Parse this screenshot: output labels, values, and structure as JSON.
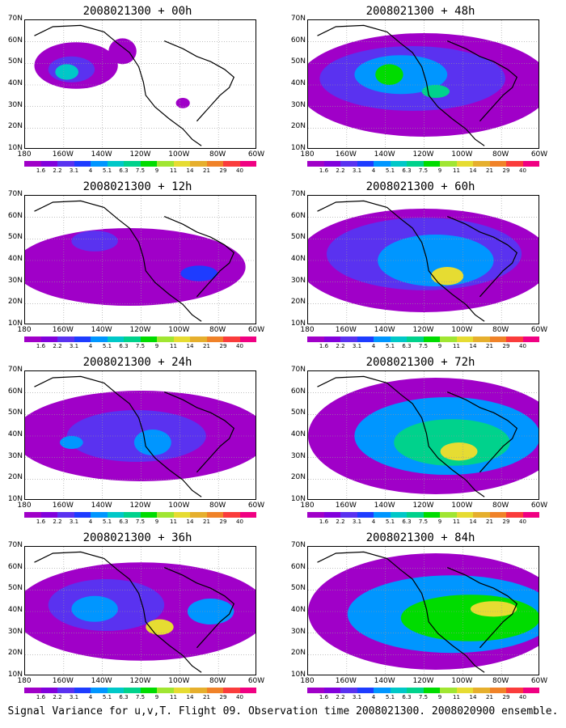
{
  "caption": "Signal Variance for u,v,T. Flight 09. Observation time 2008021300. 2008020900 ensemble.",
  "lat_labels": [
    "70N",
    "60N",
    "50N",
    "40N",
    "30N",
    "20N",
    "10N"
  ],
  "lon_labels": [
    "180",
    "160W",
    "140W",
    "120W",
    "100W",
    "80W",
    "60W"
  ],
  "colorbar": {
    "colors": [
      "#a000c8",
      "#8200dc",
      "#5a32f0",
      "#1e3cff",
      "#0096ff",
      "#00c8c8",
      "#00d28c",
      "#00dc00",
      "#a0e632",
      "#e6dc32",
      "#e6af2d",
      "#f08228",
      "#fa3c3c",
      "#f00082"
    ],
    "labels": [
      "1.6",
      "2.2",
      "3.1",
      "4",
      "5.1",
      "6.3",
      "7.5",
      "9",
      "11",
      "14",
      "21",
      "29",
      "40"
    ]
  },
  "panels": [
    {
      "title": "2008021300 + 00h"
    },
    {
      "title": "2008021300 + 48h"
    },
    {
      "title": "2008021300 + 12h"
    },
    {
      "title": "2008021300 + 60h"
    },
    {
      "title": "2008021300 + 24h"
    },
    {
      "title": "2008021300 + 72h"
    },
    {
      "title": "2008021300 + 36h"
    },
    {
      "title": "2008021300 + 84h"
    }
  ]
}
